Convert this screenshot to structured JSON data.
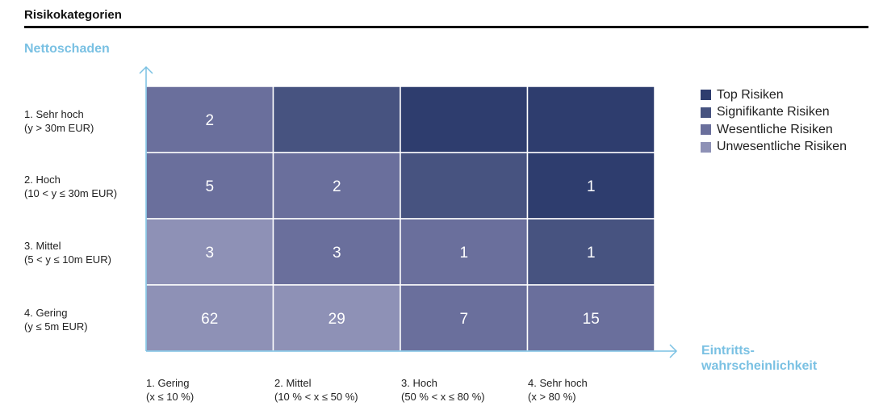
{
  "title": "Risikokategorien",
  "chart_data": {
    "type": "heatmap",
    "y_axis_title": "Nettoschaden",
    "x_axis_title": "Eintritts-\nwahrscheinlichkeit",
    "rows": [
      {
        "label": "1. Sehr hoch",
        "range": "(y > 30m EUR)"
      },
      {
        "label": "2. Hoch",
        "range": "(10 < y ≤ 30m EUR)"
      },
      {
        "label": "3. Mittel",
        "range": "(5 < y ≤ 10m EUR)"
      },
      {
        "label": "4. Gering",
        "range": "(y ≤ 5m EUR)"
      }
    ],
    "columns": [
      {
        "label": "1. Gering",
        "range": "(x ≤ 10 %)"
      },
      {
        "label": "2. Mittel",
        "range": "(10 % < x ≤ 50 %)"
      },
      {
        "label": "3. Hoch",
        "range": "(50 % < x ≤ 80 %)"
      },
      {
        "label": "4. Sehr hoch",
        "range": "(x > 80 %)"
      }
    ],
    "categories": [
      {
        "name": "Top Risiken",
        "color": "#2e3d6e"
      },
      {
        "name": "Signifikante Risiken",
        "color": "#475380"
      },
      {
        "name": "Wesentliche Risiken",
        "color": "#6a6f9c"
      },
      {
        "name": "Unwesentliche Risiken",
        "color": "#8e91b6"
      }
    ],
    "cell_category": [
      [
        2,
        1,
        0,
        0
      ],
      [
        2,
        2,
        1,
        0
      ],
      [
        3,
        2,
        2,
        1
      ],
      [
        3,
        3,
        2,
        2
      ]
    ],
    "values": [
      [
        2,
        null,
        null,
        null
      ],
      [
        5,
        2,
        null,
        1
      ],
      [
        3,
        3,
        1,
        1
      ],
      [
        62,
        29,
        7,
        15
      ]
    ],
    "legend_position": "right",
    "axis_color": "#7ac1e3"
  }
}
